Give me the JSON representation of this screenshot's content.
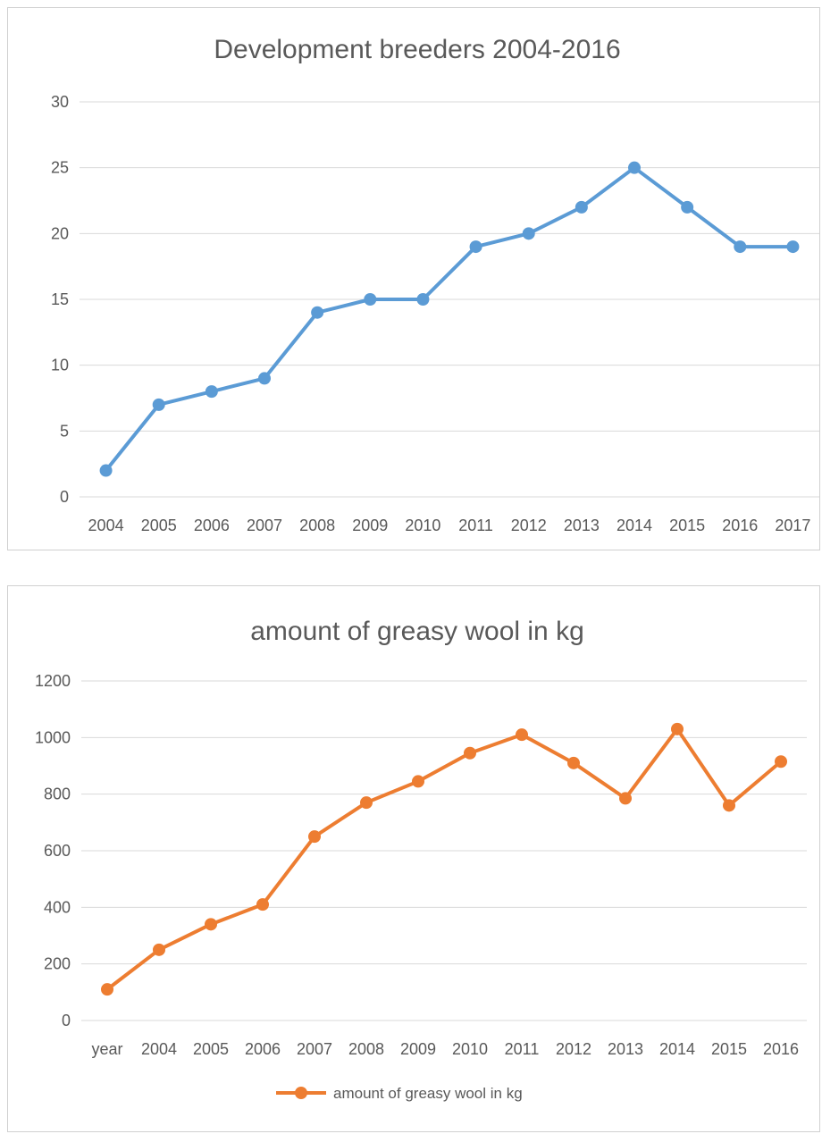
{
  "charts": [
    {
      "title": "Development breeders 2004-2016",
      "type": "line",
      "categories": [
        "2004",
        "2005",
        "2006",
        "2007",
        "2008",
        "2009",
        "2010",
        "2011",
        "2012",
        "2013",
        "2014",
        "2015",
        "2016",
        "2017"
      ],
      "series": [
        {
          "values": [
            2,
            7,
            8,
            9,
            14,
            15,
            15,
            19,
            20,
            22,
            25,
            22,
            19,
            19
          ]
        }
      ],
      "y_ticks": [
        "0",
        "5",
        "10",
        "15",
        "20",
        "25",
        "30"
      ],
      "ylim": [
        0,
        30
      ],
      "color": "#5B9BD5",
      "grid": true,
      "legend": null
    },
    {
      "title": "amount of greasy wool in kg",
      "type": "line",
      "categories": [
        "year",
        "2004",
        "2005",
        "2006",
        "2007",
        "2008",
        "2009",
        "2010",
        "2011",
        "2012",
        "2013",
        "2014",
        "2015",
        "2016"
      ],
      "series": [
        {
          "name": "amount of greasy wool in kg",
          "values": [
            110,
            250,
            340,
            410,
            650,
            770,
            845,
            945,
            1010,
            910,
            785,
            1030,
            760,
            915
          ]
        }
      ],
      "y_ticks": [
        "0",
        "200",
        "400",
        "600",
        "800",
        "1000",
        "1200"
      ],
      "ylim": [
        0,
        1200
      ],
      "color": "#ED7D31",
      "grid": true,
      "legend": "bottom"
    }
  ]
}
